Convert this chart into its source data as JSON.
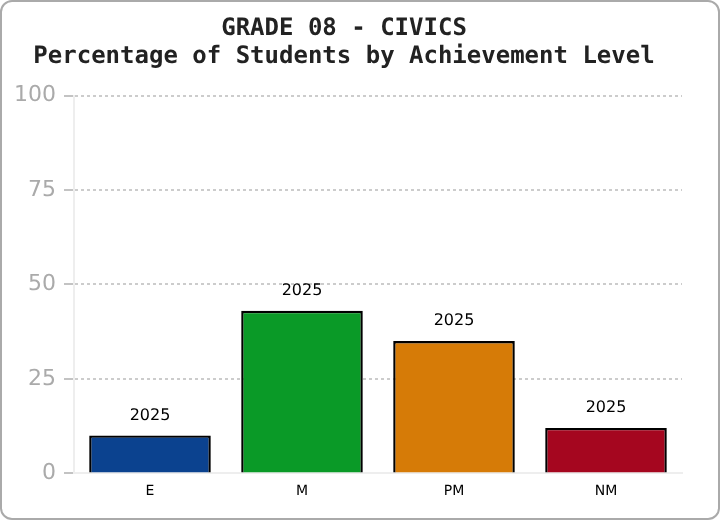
{
  "chart_data": {
    "type": "bar",
    "title": "GRADE 08 - CIVICS",
    "subtitle": "Percentage of Students by Achievement Level",
    "categories": [
      "E",
      "M",
      "PM",
      "NM"
    ],
    "series": [
      {
        "name": "2025",
        "colors": [
          "#0b428f",
          "#0a9a27",
          "#d67b07",
          "#a5061f"
        ],
        "values": [
          10,
          43,
          35,
          12
        ]
      }
    ],
    "ylim": [
      0,
      100
    ],
    "yticks": [
      0,
      25,
      50,
      75,
      100
    ],
    "grid": "y",
    "legend": false
  }
}
